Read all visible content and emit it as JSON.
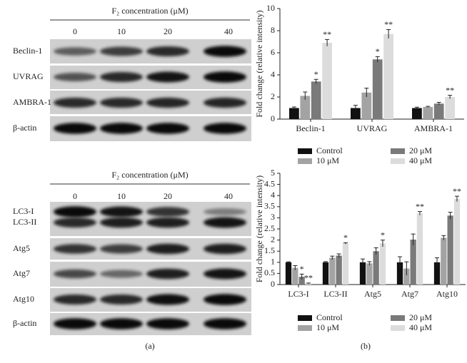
{
  "blots": [
    {
      "header": "F₂ concentration (μM)",
      "lanes": [
        "0",
        "10",
        "20",
        "40"
      ],
      "rows": [
        "Beclin-1",
        "UVRAG",
        "AMBRA-1",
        "β-actin"
      ]
    },
    {
      "header": "F₂ concentration (μM)",
      "lanes": [
        "0",
        "10",
        "20",
        "40"
      ],
      "rows": [
        "LC3-I",
        "LC3-II",
        "Atg5",
        "Atg7",
        "Atg10",
        "β-actin"
      ]
    }
  ],
  "panel_labels": [
    "(a)",
    "(b)"
  ],
  "chart_data": [
    {
      "type": "bar",
      "ylabel": "Fold change (relative intensity)",
      "categories": [
        "Beclin-1",
        "UVRAG",
        "AMBRA-1"
      ],
      "ylim": [
        0,
        10
      ],
      "yticks": [
        0,
        2,
        4,
        6,
        8,
        10
      ],
      "series": [
        {
          "name": "Control",
          "color": "#111111",
          "values": [
            1,
            1,
            1
          ],
          "errors": [
            0.1,
            0.25,
            0.08
          ],
          "significance": [
            null,
            null,
            null
          ]
        },
        {
          "name": "10 μM",
          "color": "#a3a3a3",
          "values": [
            2.1,
            2.4,
            1.1
          ],
          "errors": [
            0.35,
            0.4,
            0.05
          ],
          "significance": [
            null,
            null,
            null
          ]
        },
        {
          "name": "20 μM",
          "color": "#7a7a7a",
          "values": [
            3.4,
            5.4,
            1.4
          ],
          "errors": [
            0.2,
            0.25,
            0.12
          ],
          "significance": [
            "*",
            "*",
            null
          ]
        },
        {
          "name": "40 μM",
          "color": "#dcdcdc",
          "values": [
            6.9,
            7.7,
            2.0
          ],
          "errors": [
            0.3,
            0.4,
            0.15
          ],
          "significance": [
            "**",
            "**",
            "**"
          ]
        }
      ]
    },
    {
      "type": "bar",
      "ylabel": "Fold change (relative intensity)",
      "categories": [
        "LC3-I",
        "LC3-II",
        "Atg5",
        "Atg7",
        "Atg10"
      ],
      "ylim": [
        0,
        5
      ],
      "yticks": [
        0,
        0.5,
        1,
        1.5,
        2,
        2.5,
        3,
        3.5,
        4,
        4.5,
        5
      ],
      "series": [
        {
          "name": "Control",
          "color": "#111111",
          "values": [
            1,
            1,
            1,
            1,
            1
          ],
          "errors": [
            0.02,
            0.03,
            0.15,
            0.25,
            0.2
          ],
          "significance": [
            null,
            null,
            null,
            null,
            null
          ]
        },
        {
          "name": "10 μM",
          "color": "#a3a3a3",
          "values": [
            0.75,
            1.2,
            0.95,
            0.72,
            2.1
          ],
          "errors": [
            0.1,
            0.08,
            0.08,
            0.3,
            0.1
          ],
          "significance": [
            null,
            null,
            null,
            null,
            null
          ]
        },
        {
          "name": "20 μM",
          "color": "#7a7a7a",
          "values": [
            0.35,
            1.3,
            1.5,
            2.02,
            3.1
          ],
          "errors": [
            0.12,
            0.08,
            0.15,
            0.25,
            0.15
          ],
          "significance": [
            "*",
            null,
            null,
            null,
            null
          ]
        },
        {
          "name": "40 μM",
          "color": "#dcdcdc",
          "values": [
            0.05,
            1.85,
            1.85,
            3.2,
            3.85
          ],
          "errors": [
            0.02,
            0.03,
            0.15,
            0.08,
            0.12
          ],
          "significance": [
            "**",
            "*",
            "*",
            "**",
            "**"
          ]
        }
      ]
    }
  ]
}
